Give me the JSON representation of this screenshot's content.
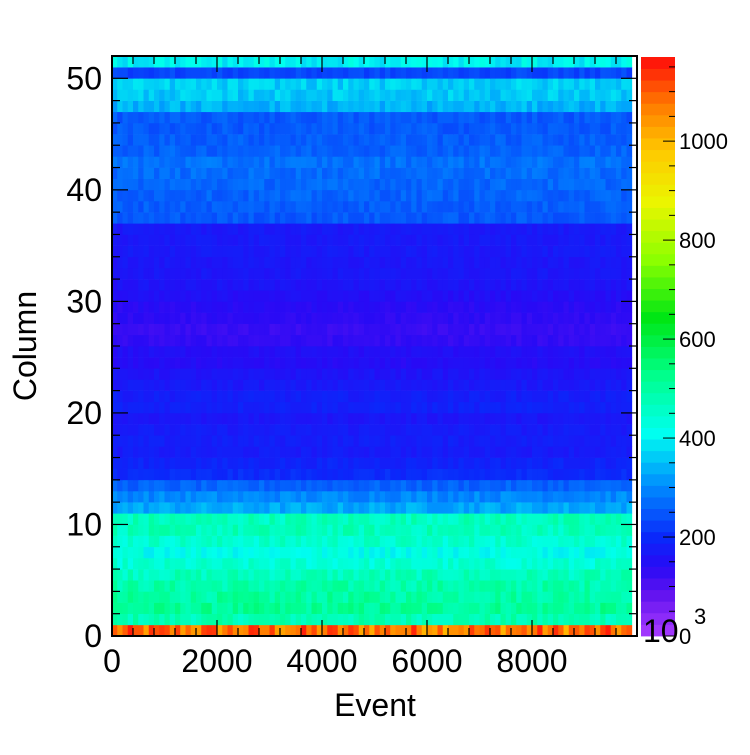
{
  "chart_data": {
    "type": "heatmap",
    "title": "",
    "xlabel": "Event",
    "ylabel": "Column",
    "xlim": [
      0,
      10000
    ],
    "ylim": [
      0,
      52
    ],
    "x_tick_labels": [
      "0",
      "2000",
      "4000",
      "6000",
      "8000"
    ],
    "x_ticks": [
      0,
      2000,
      4000,
      6000,
      8000
    ],
    "y_tick_labels": [
      "0",
      "10",
      "20",
      "30",
      "40",
      "50"
    ],
    "y_ticks": [
      0,
      10,
      20,
      30,
      40,
      50
    ],
    "colorbar": {
      "range": [
        0,
        1170
      ],
      "tick_labels": [
        "0",
        "200",
        "400",
        "600",
        "800",
        "1000"
      ],
      "ticks": [
        0,
        200,
        400,
        600,
        800,
        1000
      ],
      "exponent_label": "10",
      "exponent_superscript": "3",
      "palette": "rainbow"
    },
    "data_x_extent": [
      0,
      9900
    ],
    "x_bin_width": 100,
    "row_values": [
      1080,
      480,
      510,
      500,
      490,
      470,
      440,
      420,
      450,
      470,
      470,
      330,
      300,
      260,
      200,
      190,
      175,
      180,
      175,
      165,
      185,
      180,
      170,
      160,
      145,
      150,
      130,
      125,
      135,
      140,
      150,
      160,
      165,
      165,
      170,
      170,
      170,
      250,
      255,
      260,
      265,
      270,
      275,
      260,
      255,
      250,
      250,
      340,
      360,
      365,
      230,
      400
    ],
    "grid": false
  },
  "colors": {
    "background": "#ffffff",
    "frame": "#000000"
  }
}
